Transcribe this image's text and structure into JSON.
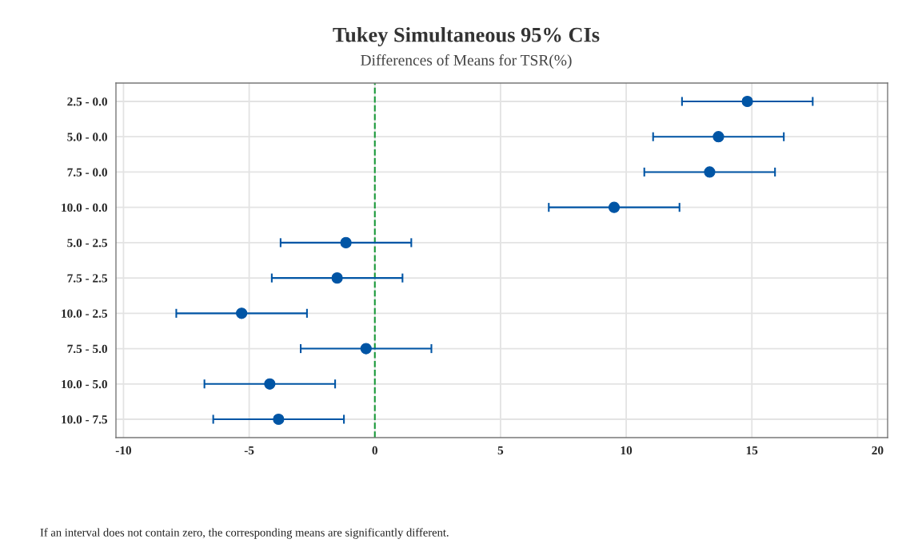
{
  "chart_data": {
    "type": "scatter",
    "orientation": "horizontal",
    "title": "Tukey Simultaneous 95% CIs",
    "subtitle": "Differences of Means for TSR(%)",
    "categories": [
      "2.5 - 0.0",
      "5.0 - 0.0",
      "7.5 - 0.0",
      "10.0 - 0.0",
      "5.0 - 2.5",
      "7.5 - 2.5",
      "10.0 - 2.5",
      "7.5 - 5.0",
      "10.0 - 5.0",
      "10.0 - 7.5"
    ],
    "series": [
      {
        "color": "#0055a5",
        "values": [
          14.82,
          13.67,
          13.32,
          9.52,
          -1.15,
          -1.5,
          -5.3,
          -0.35,
          -4.18,
          -3.83
        ],
        "errors": [
          2.6,
          2.6,
          2.6,
          2.6,
          2.6,
          2.6,
          2.6,
          2.6,
          2.6,
          2.6
        ]
      }
    ],
    "xlim": [
      -10.3,
      20.4
    ],
    "xticks": [
      -10,
      -5,
      0,
      5,
      10,
      15,
      20
    ],
    "ref_lines": [
      {
        "axis": "x",
        "value": 0,
        "color": "#1a9a3a",
        "line_style": "dashed"
      }
    ],
    "grid": true,
    "marker": "circle",
    "annotations": [
      "If an interval does not contain zero, the corresponding means are significantly different."
    ]
  }
}
